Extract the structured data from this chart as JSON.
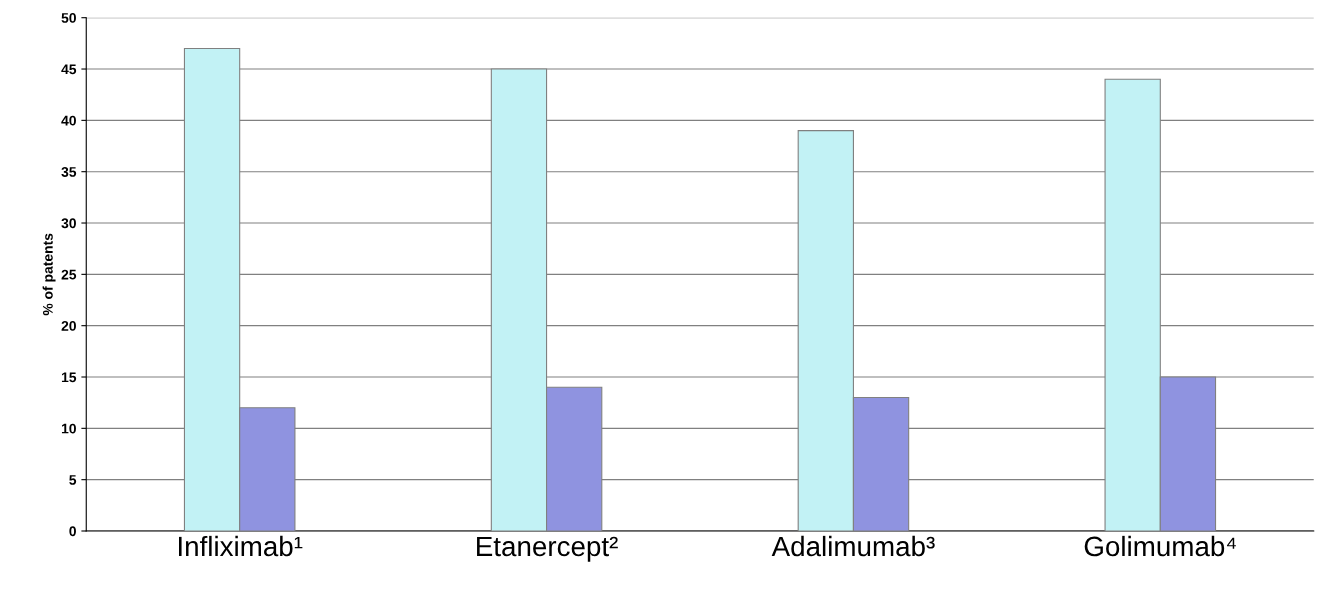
{
  "chart_data": {
    "type": "bar",
    "ylabel": "% of patents",
    "categories": [
      "Infliximab¹",
      "Etanercept²",
      "Adalimumab³",
      "Golimumab⁴"
    ],
    "series": [
      {
        "color": "#c2f2f5",
        "values": [
          47,
          45,
          39,
          44
        ]
      },
      {
        "color": "#8f93e0",
        "values": [
          12,
          14,
          13,
          15
        ]
      }
    ],
    "ylim": [
      0,
      50
    ],
    "yticks": [
      0,
      5,
      10,
      15,
      20,
      25,
      30,
      35,
      40,
      45,
      50
    ],
    "grid": "y"
  }
}
